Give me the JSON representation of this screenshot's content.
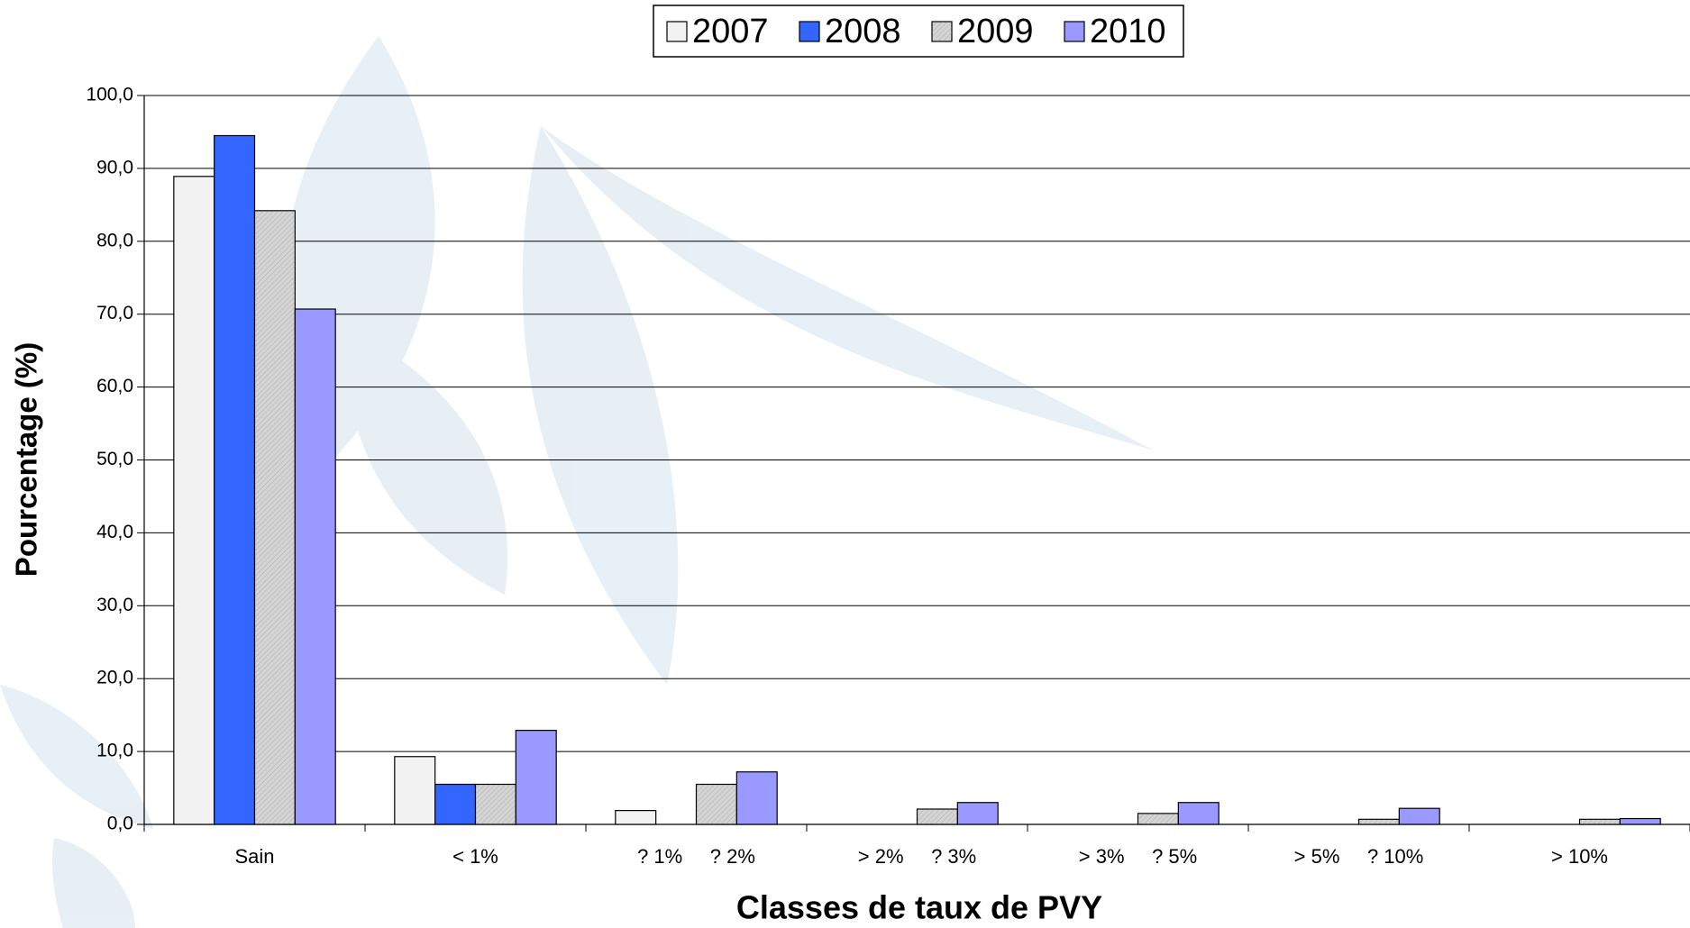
{
  "chart_data": {
    "type": "bar",
    "x_label": "Classes de taux de PVY",
    "y_label": "Pourcentage (%)",
    "categories": [
      "Sain",
      "< 1%",
      "? 1%     ? 2%",
      "> 2%     ? 3%",
      "> 3%     ? 5%",
      "> 5%     ? 10%",
      "> 10%"
    ],
    "series": [
      {
        "name": "2007",
        "color": "#f2f2f2",
        "values": [
          88.9,
          9.3,
          1.9,
          0,
          0,
          0,
          0
        ]
      },
      {
        "name": "2008",
        "color": "#3366ff",
        "values": [
          94.5,
          5.5,
          0,
          0,
          0,
          0,
          0
        ]
      },
      {
        "name": "2009",
        "color": "#d4d4d4",
        "values": [
          84.2,
          5.5,
          5.5,
          2.1,
          1.5,
          0.7,
          0.7
        ]
      },
      {
        "name": "2010",
        "color": "#9999ff",
        "values": [
          70.7,
          12.9,
          7.2,
          3.0,
          3.0,
          2.2,
          0.8
        ]
      }
    ],
    "ylim": [
      0,
      100
    ],
    "yticks": [
      {
        "value": 0,
        "label": "0,0"
      },
      {
        "value": 10,
        "label": "10,0"
      },
      {
        "value": 20,
        "label": "20,0"
      },
      {
        "value": 30,
        "label": "30,0"
      },
      {
        "value": 40,
        "label": "40,0"
      },
      {
        "value": 50,
        "label": "50,0"
      },
      {
        "value": 60,
        "label": "60,0"
      },
      {
        "value": 70,
        "label": "70,0"
      },
      {
        "value": 80,
        "label": "80,0"
      },
      {
        "value": 90,
        "label": "90,0"
      },
      {
        "value": 100,
        "label": "100,0"
      }
    ],
    "grid": true,
    "legend": "top"
  }
}
